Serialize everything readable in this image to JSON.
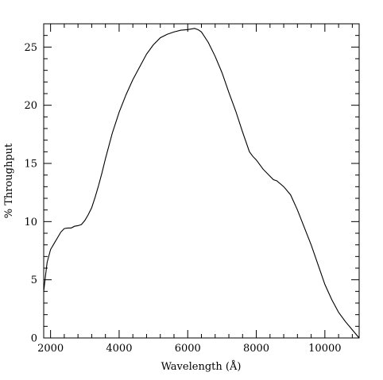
{
  "chart_data": {
    "type": "line",
    "title": "",
    "xlabel": "Wavelength (Å)",
    "ylabel": "% Throughput",
    "xlim": [
      1800,
      11000
    ],
    "ylim": [
      0,
      27
    ],
    "grid": false,
    "x_ticks_major": [
      2000,
      4000,
      6000,
      8000,
      10000
    ],
    "y_ticks_major": [
      0,
      5,
      10,
      15,
      20,
      25
    ],
    "x_tick_labels": [
      "2000",
      "4000",
      "6000",
      "8000",
      "10000"
    ],
    "y_tick_labels": [
      "0",
      "5",
      "10",
      "15",
      "20",
      "25"
    ],
    "series": [
      {
        "x": [
          1800,
          1850,
          1900,
          2000,
          2100,
          2200,
          2300,
          2400,
          2500,
          2600,
          2700,
          2800,
          2900,
          3000,
          3100,
          3200,
          3300,
          3400,
          3500,
          3600,
          3700,
          3800,
          3900,
          4000,
          4200,
          4400,
          4600,
          4800,
          5000,
          5200,
          5400,
          5600,
          5800,
          6000,
          6200,
          6300,
          6400,
          6600,
          6800,
          7000,
          7200,
          7400,
          7600,
          7800,
          7900,
          8000,
          8200,
          8400,
          8500,
          8600,
          8800,
          9000,
          9200,
          9400,
          9600,
          9800,
          10000,
          10200,
          10400,
          10600,
          10800,
          11000
        ],
        "y": [
          4.0,
          5.3,
          6.5,
          7.6,
          8.1,
          8.6,
          9.1,
          9.4,
          9.45,
          9.45,
          9.6,
          9.65,
          9.75,
          10.1,
          10.6,
          11.2,
          12.1,
          13.1,
          14.2,
          15.4,
          16.5,
          17.6,
          18.5,
          19.4,
          20.9,
          22.2,
          23.3,
          24.4,
          25.2,
          25.8,
          26.1,
          26.3,
          26.45,
          26.5,
          26.6,
          26.5,
          26.3,
          25.4,
          24.2,
          22.8,
          21.1,
          19.5,
          17.7,
          16.0,
          15.6,
          15.3,
          14.5,
          13.9,
          13.6,
          13.5,
          13.0,
          12.3,
          11.0,
          9.5,
          8.0,
          6.3,
          4.6,
          3.3,
          2.2,
          1.4,
          0.7,
          0.0
        ]
      }
    ]
  }
}
